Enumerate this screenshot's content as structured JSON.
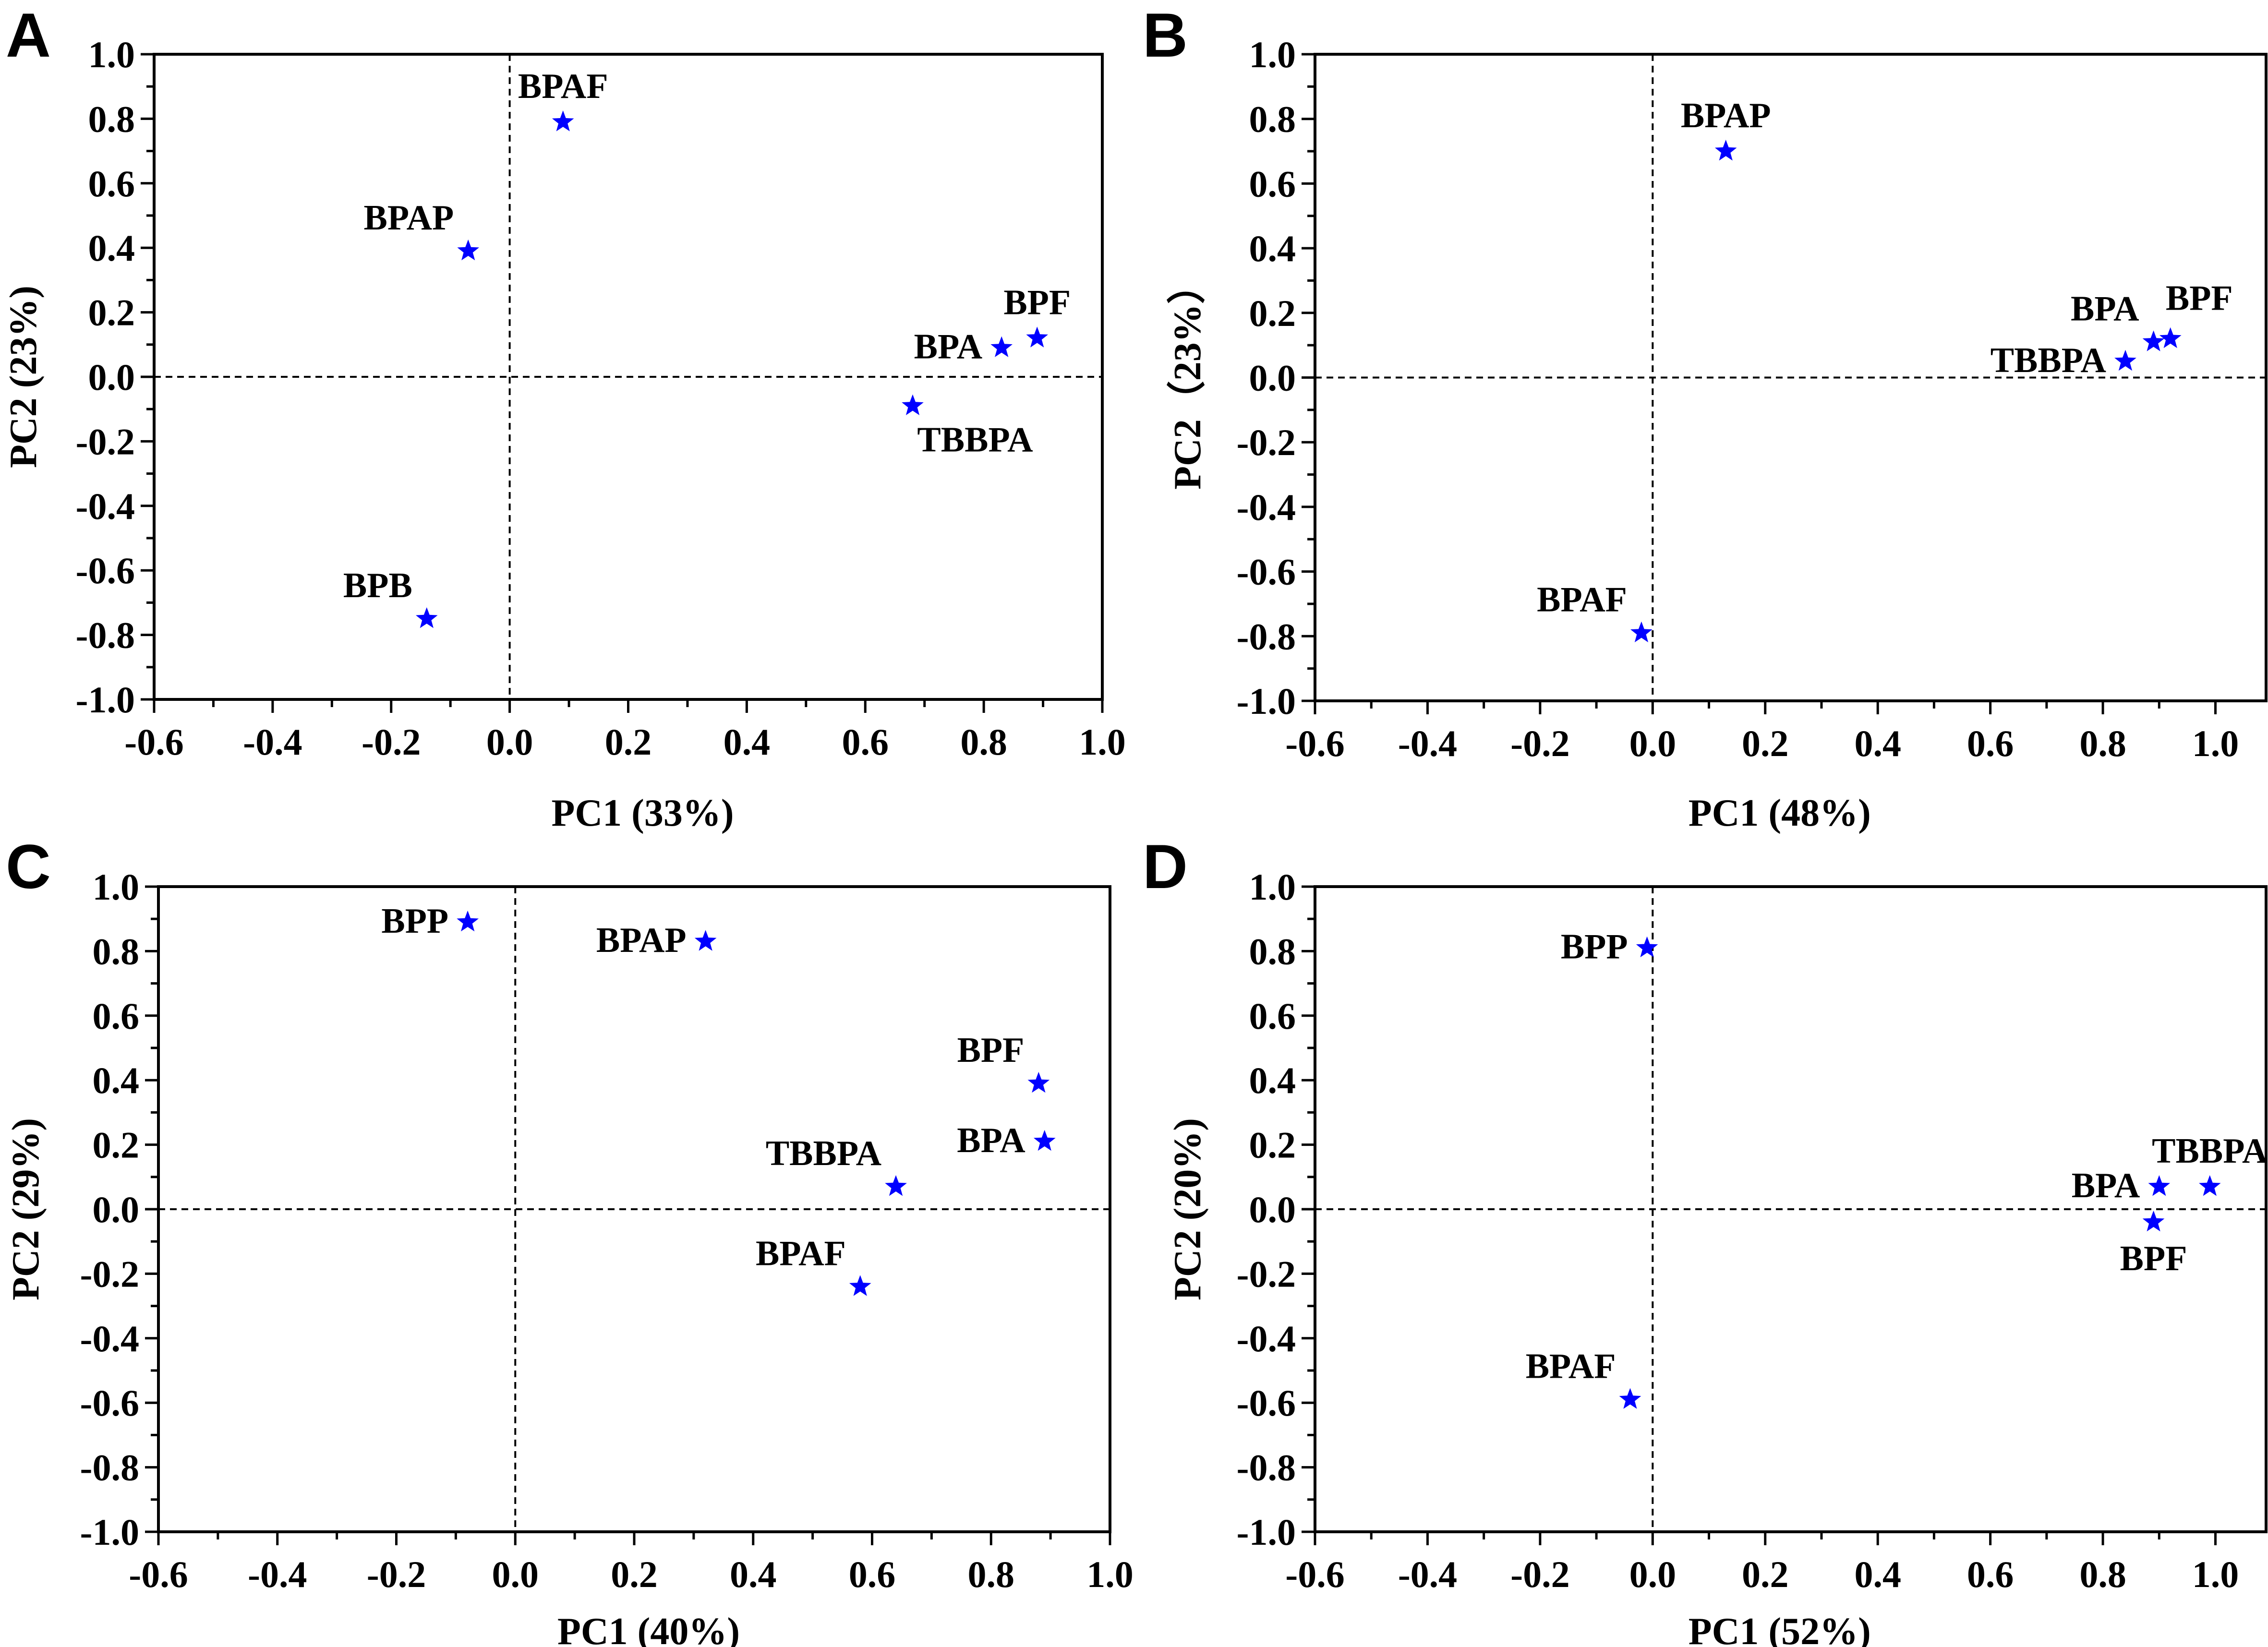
{
  "chart_data": [
    {
      "panel": "A",
      "type": "scatter",
      "title": "",
      "xlabel": "PC1 (33%)",
      "ylabel": "PC2 (23%)",
      "xlim": [
        -0.6,
        1.0
      ],
      "ylim": [
        -1.0,
        1.0
      ],
      "xticks": [
        "-0.6",
        "-0.4",
        "-0.2",
        "0.0",
        "0.2",
        "0.4",
        "0.6",
        "0.8",
        "1.0"
      ],
      "yticks": [
        "-1.0",
        "-0.8",
        "-0.6",
        "-0.4",
        "-0.2",
        "0.0",
        "0.2",
        "0.4",
        "0.6",
        "0.8",
        "1.0"
      ],
      "zero_lines": true,
      "marker": "star",
      "marker_color": "#0000FF",
      "points": [
        {
          "label": "BPAF",
          "x": 0.09,
          "y": 0.79,
          "label_pos": "above"
        },
        {
          "label": "BPAP",
          "x": -0.07,
          "y": 0.39,
          "label_pos": "above-left"
        },
        {
          "label": "BPF",
          "x": 0.89,
          "y": 0.12,
          "label_pos": "above"
        },
        {
          "label": "BPA",
          "x": 0.83,
          "y": 0.09,
          "label_pos": "left"
        },
        {
          "label": "TBBPA",
          "x": 0.68,
          "y": -0.09,
          "label_pos": "below-right"
        },
        {
          "label": "BPB",
          "x": -0.14,
          "y": -0.75,
          "label_pos": "above-left"
        }
      ]
    },
    {
      "panel": "B",
      "type": "scatter",
      "title": "",
      "xlabel": "PC1 (48%)",
      "ylabel": "PC2（23%）",
      "xlim": [
        -0.6,
        1.09
      ],
      "ylim": [
        -1.0,
        1.0
      ],
      "xticks": [
        "-0.6",
        "-0.4",
        "-0.2",
        "0.0",
        "0.2",
        "0.4",
        "0.6",
        "0.8",
        "1.0"
      ],
      "yticks": [
        "-1.0",
        "-0.8",
        "-0.6",
        "-0.4",
        "-0.2",
        "0.0",
        "0.2",
        "0.4",
        "0.6",
        "0.8",
        "1.0"
      ],
      "zero_lines": true,
      "marker": "star",
      "marker_color": "#0000FF",
      "points": [
        {
          "label": "BPAP",
          "x": 0.13,
          "y": 0.7,
          "label_pos": "above"
        },
        {
          "label": "BPF",
          "x": 0.92,
          "y": 0.12,
          "label_pos": "above-right"
        },
        {
          "label": "BPA",
          "x": 0.89,
          "y": 0.11,
          "label_pos": "above-left"
        },
        {
          "label": "TBBPA",
          "x": 0.84,
          "y": 0.05,
          "label_pos": "left"
        },
        {
          "label": "BPAF",
          "x": -0.02,
          "y": -0.79,
          "label_pos": "above-left"
        }
      ]
    },
    {
      "panel": "C",
      "type": "scatter",
      "title": "",
      "xlabel": "PC1 (40%)",
      "ylabel": "PC2 (29%)",
      "xlim": [
        -0.6,
        1.0
      ],
      "ylim": [
        -1.0,
        1.0
      ],
      "xticks": [
        "-0.6",
        "-0.4",
        "-0.2",
        "0.0",
        "0.2",
        "0.4",
        "0.6",
        "0.8",
        "1.0"
      ],
      "yticks": [
        "-1.0",
        "-0.8",
        "-0.6",
        "-0.4",
        "-0.2",
        "0.0",
        "0.2",
        "0.4",
        "0.6",
        "0.8",
        "1.0"
      ],
      "zero_lines": true,
      "marker": "star",
      "marker_color": "#0000FF",
      "points": [
        {
          "label": "BPP",
          "x": -0.08,
          "y": 0.89,
          "label_pos": "left"
        },
        {
          "label": "BPAP",
          "x": 0.32,
          "y": 0.83,
          "label_pos": "left"
        },
        {
          "label": "BPF",
          "x": 0.88,
          "y": 0.39,
          "label_pos": "above-left"
        },
        {
          "label": "BPA",
          "x": 0.89,
          "y": 0.21,
          "label_pos": "left"
        },
        {
          "label": "TBBPA",
          "x": 0.64,
          "y": 0.07,
          "label_pos": "above-left"
        },
        {
          "label": "BPAF",
          "x": 0.58,
          "y": -0.24,
          "label_pos": "above-left"
        }
      ]
    },
    {
      "panel": "D",
      "type": "scatter",
      "title": "",
      "xlabel": "PC1 (52%)",
      "ylabel": "PC2 (20%)",
      "xlim": [
        -0.6,
        1.09
      ],
      "ylim": [
        -1.0,
        1.0
      ],
      "xticks": [
        "-0.6",
        "-0.4",
        "-0.2",
        "0.0",
        "0.2",
        "0.4",
        "0.6",
        "0.8",
        "1.0"
      ],
      "yticks": [
        "-1.0",
        "-0.8",
        "-0.6",
        "-0.4",
        "-0.2",
        "0.0",
        "0.2",
        "0.4",
        "0.6",
        "0.8",
        "1.0"
      ],
      "zero_lines": true,
      "marker": "star",
      "marker_color": "#0000FF",
      "points": [
        {
          "label": "BPP",
          "x": -0.01,
          "y": 0.81,
          "label_pos": "left"
        },
        {
          "label": "TBBPA",
          "x": 0.99,
          "y": 0.07,
          "label_pos": "above"
        },
        {
          "label": "BPA",
          "x": 0.9,
          "y": 0.07,
          "label_pos": "left"
        },
        {
          "label": "BPF",
          "x": 0.89,
          "y": -0.04,
          "label_pos": "below"
        },
        {
          "label": "BPAF",
          "x": -0.04,
          "y": -0.59,
          "label_pos": "above-left"
        }
      ]
    }
  ],
  "panels": {
    "letters": [
      "A",
      "B",
      "C",
      "D"
    ]
  }
}
